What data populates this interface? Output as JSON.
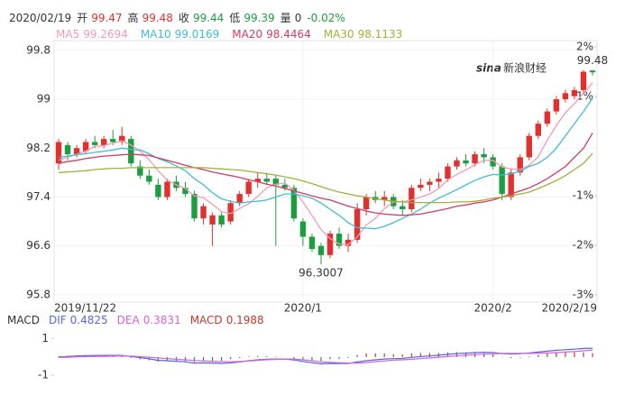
{
  "header": {
    "date": "2020/02/19",
    "labels": [
      "开",
      "高",
      "收",
      "低"
    ],
    "volume_label": "量",
    "volume": 0,
    "change": "-0.02%",
    "watermark_logo": "sina",
    "watermark_text": "新浪财经"
  },
  "chart_data": [
    {
      "type": "candlestick",
      "categories": [
        "2019/11/22",
        null,
        null,
        null,
        null,
        null,
        null,
        null,
        null,
        null,
        null,
        null,
        null,
        null,
        null,
        null,
        null,
        null,
        null,
        null,
        null,
        null,
        null,
        null,
        null,
        null,
        null,
        "2020/1",
        null,
        null,
        null,
        null,
        null,
        null,
        null,
        null,
        null,
        null,
        null,
        null,
        null,
        null,
        null,
        null,
        null,
        null,
        null,
        null,
        "2020/2",
        null,
        null,
        null,
        null,
        null,
        null,
        null,
        null,
        null,
        null,
        "2020/2/19"
      ],
      "open": [
        97.95,
        98.25,
        98.1,
        98.15,
        98.3,
        98.25,
        98.35,
        98.3,
        98.35,
        97.9,
        97.75,
        97.6,
        97.4,
        97.65,
        97.55,
        97.45,
        97.05,
        96.95,
        97.1,
        97.0,
        97.3,
        97.45,
        97.65,
        97.7,
        97.7,
        97.6,
        97.55,
        97.0,
        96.75,
        96.6,
        96.45,
        96.8,
        96.6,
        96.7,
        97.2,
        97.4,
        97.35,
        97.4,
        97.25,
        97.2,
        97.55,
        97.6,
        97.65,
        97.7,
        97.9,
        98.0,
        97.95,
        98.1,
        98.05,
        97.9,
        97.4,
        97.8,
        98.05,
        98.4,
        98.6,
        98.8,
        99.0,
        99.05,
        99.15,
        99.47
      ],
      "high": [
        98.35,
        98.3,
        98.25,
        98.35,
        98.4,
        98.4,
        98.5,
        98.55,
        98.4,
        98.0,
        97.85,
        97.7,
        97.7,
        97.75,
        97.65,
        97.5,
        97.3,
        97.15,
        97.15,
        97.35,
        97.5,
        97.7,
        97.8,
        97.8,
        97.75,
        97.7,
        97.6,
        97.05,
        96.8,
        96.65,
        96.85,
        96.9,
        96.8,
        97.3,
        97.45,
        97.5,
        97.5,
        97.45,
        97.35,
        97.6,
        97.7,
        97.7,
        97.8,
        97.95,
        98.05,
        98.1,
        98.15,
        98.2,
        98.1,
        97.95,
        97.85,
        98.1,
        98.45,
        98.65,
        98.85,
        99.05,
        99.15,
        99.2,
        99.4762,
        99.48
      ],
      "low": [
        97.85,
        98.0,
        98.05,
        98.1,
        98.2,
        98.2,
        98.25,
        98.25,
        97.9,
        97.7,
        97.6,
        97.35,
        97.35,
        97.5,
        97.4,
        97.0,
        96.95,
        96.6,
        96.9,
        96.95,
        97.25,
        97.4,
        97.55,
        97.6,
        96.6,
        97.5,
        97.0,
        96.6,
        96.5,
        96.3007,
        96.4,
        96.55,
        96.5,
        96.65,
        97.1,
        97.3,
        97.25,
        97.2,
        97.1,
        97.15,
        97.5,
        97.5,
        97.55,
        97.65,
        97.85,
        97.9,
        97.9,
        97.95,
        97.85,
        97.35,
        97.35,
        97.75,
        98.0,
        98.35,
        98.55,
        98.75,
        98.95,
        99.0,
        99.1,
        99.39
      ],
      "close": [
        98.3,
        98.1,
        98.2,
        98.3,
        98.25,
        98.35,
        98.3,
        98.4,
        97.95,
        97.75,
        97.65,
        97.4,
        97.65,
        97.55,
        97.45,
        97.05,
        97.25,
        97.1,
        96.95,
        97.3,
        97.45,
        97.65,
        97.7,
        97.65,
        97.6,
        97.55,
        97.05,
        96.75,
        96.55,
        96.45,
        96.8,
        96.6,
        96.7,
        97.2,
        97.4,
        97.35,
        97.4,
        97.25,
        97.2,
        97.55,
        97.6,
        97.65,
        97.7,
        97.9,
        98.0,
        97.95,
        98.1,
        98.05,
        97.9,
        97.45,
        97.8,
        98.05,
        98.4,
        98.6,
        98.8,
        99.0,
        99.1,
        99.15,
        99.45,
        99.44
      ],
      "up_color": "#e0312f",
      "down_color": "#1a9e3f",
      "series": [
        {
          "name": "MA5",
          "color": "#f29ab4",
          "values": [
            98.0,
            98.05,
            98.1,
            98.15,
            98.23,
            98.24,
            98.28,
            98.32,
            98.25,
            98.15,
            98.01,
            97.83,
            97.68,
            97.6,
            97.54,
            97.42,
            97.39,
            97.28,
            97.16,
            97.13,
            97.21,
            97.29,
            97.41,
            97.55,
            97.61,
            97.63,
            97.51,
            97.32,
            97.1,
            96.87,
            96.72,
            96.63,
            96.62,
            96.75,
            96.94,
            97.05,
            97.21,
            97.32,
            97.32,
            97.35,
            97.4,
            97.45,
            97.54,
            97.68,
            97.77,
            97.84,
            97.93,
            98.0,
            98.0,
            97.89,
            97.86,
            97.85,
            97.92,
            98.06,
            98.33,
            98.57,
            98.78,
            98.93,
            99.1,
            99.2694
          ]
        },
        {
          "name": "MA10",
          "color": "#3fbcd6",
          "values": [
            98.05,
            98.07,
            98.09,
            98.11,
            98.13,
            98.15,
            98.17,
            98.2,
            98.18,
            98.17,
            98.11,
            98.03,
            97.98,
            97.91,
            97.83,
            97.7,
            97.6,
            97.47,
            97.37,
            97.33,
            97.3,
            97.32,
            97.33,
            97.35,
            97.4,
            97.45,
            97.45,
            97.42,
            97.38,
            97.3,
            97.2,
            97.1,
            96.98,
            96.9,
            96.89,
            96.88,
            96.92,
            96.98,
            97.05,
            97.12,
            97.2,
            97.3,
            97.38,
            97.45,
            97.52,
            97.6,
            97.67,
            97.73,
            97.77,
            97.76,
            97.78,
            97.82,
            97.9,
            97.95,
            98.05,
            98.2,
            98.4,
            98.6,
            98.8,
            99.0169
          ]
        },
        {
          "name": "MA20",
          "color": "#d23a68",
          "values": [
            97.95,
            97.98,
            98.0,
            98.03,
            98.05,
            98.07,
            98.08,
            98.09,
            98.1,
            98.09,
            98.08,
            98.04,
            98.0,
            97.96,
            97.92,
            97.88,
            97.85,
            97.81,
            97.78,
            97.75,
            97.72,
            97.68,
            97.65,
            97.61,
            97.58,
            97.54,
            97.5,
            97.46,
            97.42,
            97.38,
            97.35,
            97.3,
            97.25,
            97.21,
            97.17,
            97.14,
            97.12,
            97.11,
            97.1,
            97.11,
            97.12,
            97.15,
            97.18,
            97.21,
            97.25,
            97.27,
            97.3,
            97.32,
            97.35,
            97.4,
            97.45,
            97.5,
            97.55,
            97.62,
            97.7,
            97.8,
            97.9,
            98.05,
            98.2,
            98.4464
          ]
        },
        {
          "name": "MA30",
          "color": "#a2b03a",
          "values": [
            97.8,
            97.81,
            97.82,
            97.83,
            97.85,
            97.86,
            97.87,
            97.87,
            97.88,
            97.88,
            97.88,
            97.88,
            97.88,
            97.88,
            97.88,
            97.88,
            97.88,
            97.87,
            97.86,
            97.85,
            97.84,
            97.82,
            97.8,
            97.78,
            97.76,
            97.73,
            97.7,
            97.66,
            97.62,
            97.57,
            97.52,
            97.48,
            97.45,
            97.42,
            97.4,
            97.37,
            97.35,
            97.33,
            97.32,
            97.31,
            97.31,
            97.31,
            97.31,
            97.31,
            97.32,
            97.32,
            97.33,
            97.35,
            97.38,
            97.4,
            97.42,
            97.45,
            97.48,
            97.54,
            97.6,
            97.67,
            97.75,
            97.85,
            97.95,
            98.1133
          ]
        }
      ],
      "ylim": [
        95.68,
        99.96
      ],
      "yticks": [
        95.8,
        96.6,
        97.4,
        98.2,
        99,
        99.8
      ],
      "y2lim": [
        -3.15,
        2.13
      ],
      "y2ticks": [
        {
          "value": -3,
          "label": "-3%"
        },
        {
          "value": -2,
          "label": "-2%"
        },
        {
          "value": -1,
          "label": "-1%"
        },
        {
          "value": 1,
          "label": "1%"
        },
        {
          "value": 2,
          "label": "2%"
        }
      ],
      "grid": true
    },
    {
      "type": "macd",
      "title": "MACD",
      "series": [
        {
          "name": "DIF",
          "color": "#5566e0",
          "values": [
            0.0,
            0.03,
            0.06,
            0.08,
            0.09,
            0.09,
            0.09,
            0.09,
            0.03,
            -0.04,
            -0.1,
            -0.18,
            -0.2,
            -0.23,
            -0.26,
            -0.33,
            -0.32,
            -0.33,
            -0.35,
            -0.32,
            -0.27,
            -0.2,
            -0.15,
            -0.12,
            -0.11,
            -0.11,
            -0.16,
            -0.24,
            -0.31,
            -0.37,
            -0.35,
            -0.36,
            -0.35,
            -0.27,
            -0.2,
            -0.15,
            -0.11,
            -0.09,
            -0.08,
            -0.02,
            0.02,
            0.06,
            0.1,
            0.15,
            0.19,
            0.21,
            0.24,
            0.26,
            0.25,
            0.19,
            0.17,
            0.18,
            0.22,
            0.27,
            0.32,
            0.37,
            0.4,
            0.43,
            0.47,
            0.4825
          ]
        },
        {
          "name": "DEA",
          "color": "#d563d6",
          "values": [
            -0.025,
            -0.01,
            0.01,
            0.02,
            0.03,
            0.04,
            0.05,
            0.06,
            0.055,
            0.02,
            -0.01,
            -0.055,
            -0.09,
            -0.12,
            -0.15,
            -0.19,
            -0.21,
            -0.23,
            -0.25,
            -0.26,
            -0.245,
            -0.215,
            -0.18,
            -0.145,
            -0.125,
            -0.11,
            -0.11,
            -0.15,
            -0.2,
            -0.26,
            -0.29,
            -0.31,
            -0.325,
            -0.33,
            -0.3,
            -0.25,
            -0.21,
            -0.17,
            -0.15,
            -0.12,
            -0.09,
            -0.05,
            -0.01,
            0.025,
            0.06,
            0.1,
            0.13,
            0.16,
            0.18,
            0.2,
            0.2,
            0.2,
            0.2,
            0.21,
            0.22,
            0.24,
            0.27,
            0.3,
            0.34,
            0.3831
          ]
        },
        {
          "name": "MACD",
          "color": "#c0392b",
          "neg_color": "#2e8b57",
          "values": [
            0.05,
            0.08,
            0.1,
            0.12,
            0.12,
            0.1,
            0.08,
            0.06,
            -0.05,
            -0.12,
            -0.18,
            -0.25,
            -0.22,
            -0.22,
            -0.22,
            -0.28,
            -0.22,
            -0.2,
            -0.2,
            -0.12,
            -0.05,
            0.03,
            0.06,
            0.05,
            0.03,
            0.0,
            -0.1,
            -0.18,
            -0.22,
            -0.22,
            -0.12,
            -0.1,
            -0.05,
            0.12,
            0.2,
            0.2,
            0.2,
            0.16,
            0.14,
            0.2,
            0.22,
            0.22,
            0.22,
            0.25,
            0.26,
            0.22,
            0.22,
            0.2,
            0.14,
            -0.02,
            -0.06,
            -0.04,
            0.04,
            0.12,
            0.2,
            0.26,
            0.26,
            0.26,
            0.26,
            0.1988
          ]
        }
      ],
      "ylim": [
        -1.58,
        1.67
      ],
      "yticks": [
        -1,
        1
      ]
    }
  ]
}
